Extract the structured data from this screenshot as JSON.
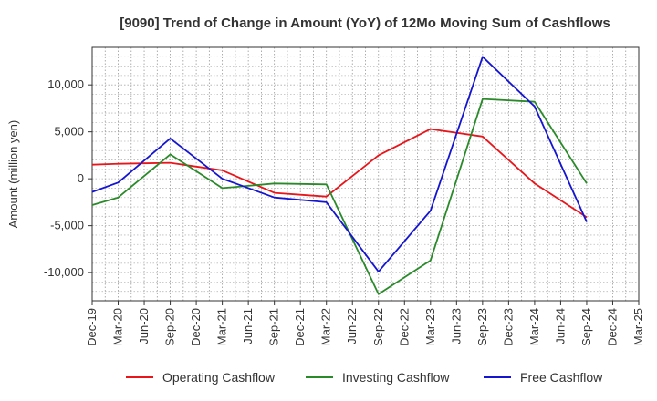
{
  "chart_data": {
    "type": "line",
    "title": "[9090]  Trend of Change in Amount (YoY) of 12Mo Moving Sum of Cashflows",
    "xlabel": "",
    "ylabel": "Amount (million yen)",
    "ylim": [
      -13000,
      14000
    ],
    "yticks": [
      -10000,
      -5000,
      0,
      5000,
      10000
    ],
    "ytick_labels": [
      "-10,000",
      "-5,000",
      "0",
      "5,000",
      "10,000"
    ],
    "categories": [
      "Dec-19",
      "Mar-20",
      "Jun-20",
      "Sep-20",
      "Dec-20",
      "Mar-21",
      "Jun-21",
      "Sep-21",
      "Dec-21",
      "Mar-22",
      "Jun-22",
      "Sep-22",
      "Dec-22",
      "Mar-23",
      "Jun-23",
      "Sep-23",
      "Dec-23",
      "Mar-24",
      "Jun-24",
      "Sep-24",
      "Dec-24",
      "Mar-25"
    ],
    "grid": true,
    "legend_position": "bottom",
    "series": [
      {
        "name": "Operating Cashflow",
        "color": "#e8151b",
        "values": [
          1500,
          1600,
          1650,
          1700,
          1300,
          900,
          -300,
          -1500,
          -1700,
          -1900,
          null,
          2500,
          null,
          5300,
          null,
          4500,
          null,
          -500,
          null,
          -4100,
          null,
          null
        ]
      },
      {
        "name": "Investing Cashflow",
        "color": "#2a8a2a",
        "values": [
          -2800,
          -2000,
          null,
          2600,
          null,
          -1000,
          null,
          -500,
          null,
          -600,
          null,
          -12300,
          null,
          -8700,
          null,
          8500,
          null,
          8200,
          null,
          -500,
          null,
          null
        ]
      },
      {
        "name": "Free Cashflow",
        "color": "#1515d0",
        "values": [
          -1400,
          -400,
          null,
          4300,
          null,
          0,
          null,
          -2000,
          null,
          -2500,
          null,
          -9900,
          null,
          -3400,
          null,
          13000,
          null,
          7700,
          null,
          -4600,
          null,
          null
        ]
      }
    ]
  }
}
